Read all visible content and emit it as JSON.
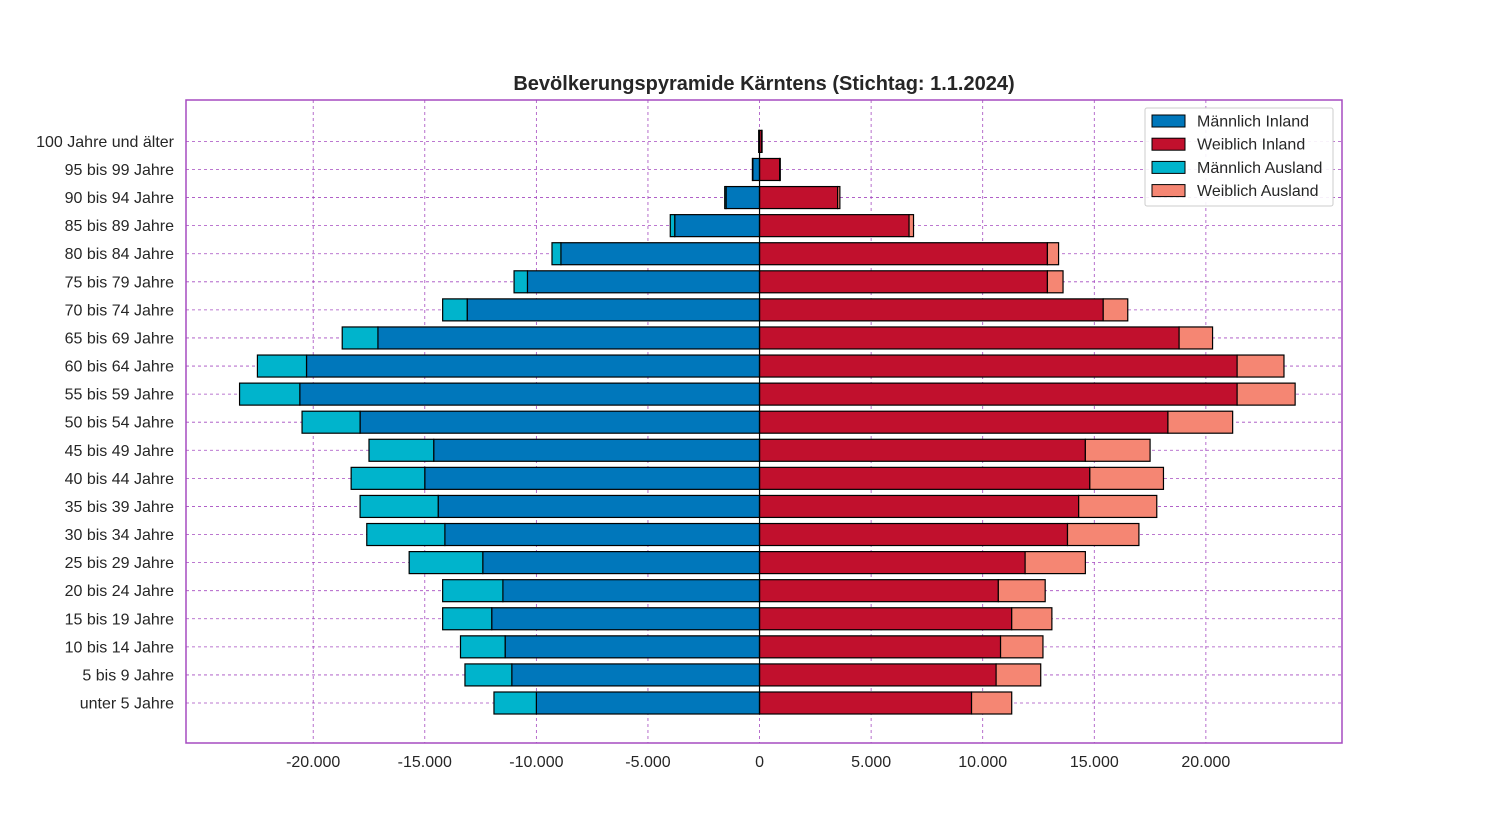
{
  "chart_data": {
    "type": "bar",
    "orientation": "horizontal",
    "title": "Bevölkerungspyramide Kärntens (Stichtag: 1.1.2024)",
    "xlabel": "",
    "ylabel": "",
    "xlim": [
      -25700,
      26100
    ],
    "xticks": [
      -20000,
      -15000,
      -10000,
      -5000,
      0,
      5000,
      10000,
      15000,
      20000
    ],
    "xtick_labels": [
      "-20.000",
      "-15.000",
      "-10.000",
      "-5.000",
      "0",
      "5.000",
      "10.000",
      "15.000",
      "20.000"
    ],
    "grid": true,
    "legend_position": "top-right",
    "categories": [
      "unter 5 Jahre",
      "5 bis 9 Jahre",
      "10 bis 14 Jahre",
      "15 bis 19 Jahre",
      "20 bis 24 Jahre",
      "25 bis 29 Jahre",
      "30 bis 34 Jahre",
      "35 bis 39 Jahre",
      "40 bis 44 Jahre",
      "45 bis 49 Jahre",
      "50 bis 54 Jahre",
      "55 bis 59 Jahre",
      "60 bis 64 Jahre",
      "65 bis 69 Jahre",
      "70 bis 74 Jahre",
      "75 bis 79 Jahre",
      "80 bis 84 Jahre",
      "85 bis 89 Jahre",
      "90 bis 94 Jahre",
      "95 bis 99 Jahre",
      "100 Jahre und älter"
    ],
    "series": [
      {
        "name": "Männlich Inland",
        "color": "#0077bb",
        "values": [
          10000,
          11100,
          11400,
          12000,
          11500,
          12400,
          14100,
          14400,
          15000,
          14600,
          17900,
          20600,
          20300,
          17100,
          13100,
          10400,
          8900,
          3800,
          1500,
          300,
          30
        ]
      },
      {
        "name": "Weiblich Inland",
        "color": "#c1102d",
        "values": [
          9500,
          10600,
          10800,
          11300,
          10700,
          11900,
          13800,
          14300,
          14800,
          14600,
          18300,
          21400,
          21400,
          18800,
          15400,
          12900,
          12900,
          6700,
          3500,
          900,
          100
        ]
      },
      {
        "name": "Männlich Ausland",
        "color": "#00b4cc",
        "values": [
          1900,
          2100,
          2000,
          2200,
          2700,
          3300,
          3500,
          3500,
          3300,
          2900,
          2600,
          2700,
          2200,
          1600,
          1100,
          600,
          400,
          200,
          60,
          20,
          5
        ]
      },
      {
        "name": "Weiblich Ausland",
        "color": "#f58673",
        "values": [
          1800,
          2000,
          1900,
          1800,
          2100,
          2700,
          3200,
          3500,
          3300,
          2900,
          2900,
          2600,
          2100,
          1500,
          1100,
          700,
          500,
          200,
          100,
          30,
          5
        ]
      }
    ]
  }
}
